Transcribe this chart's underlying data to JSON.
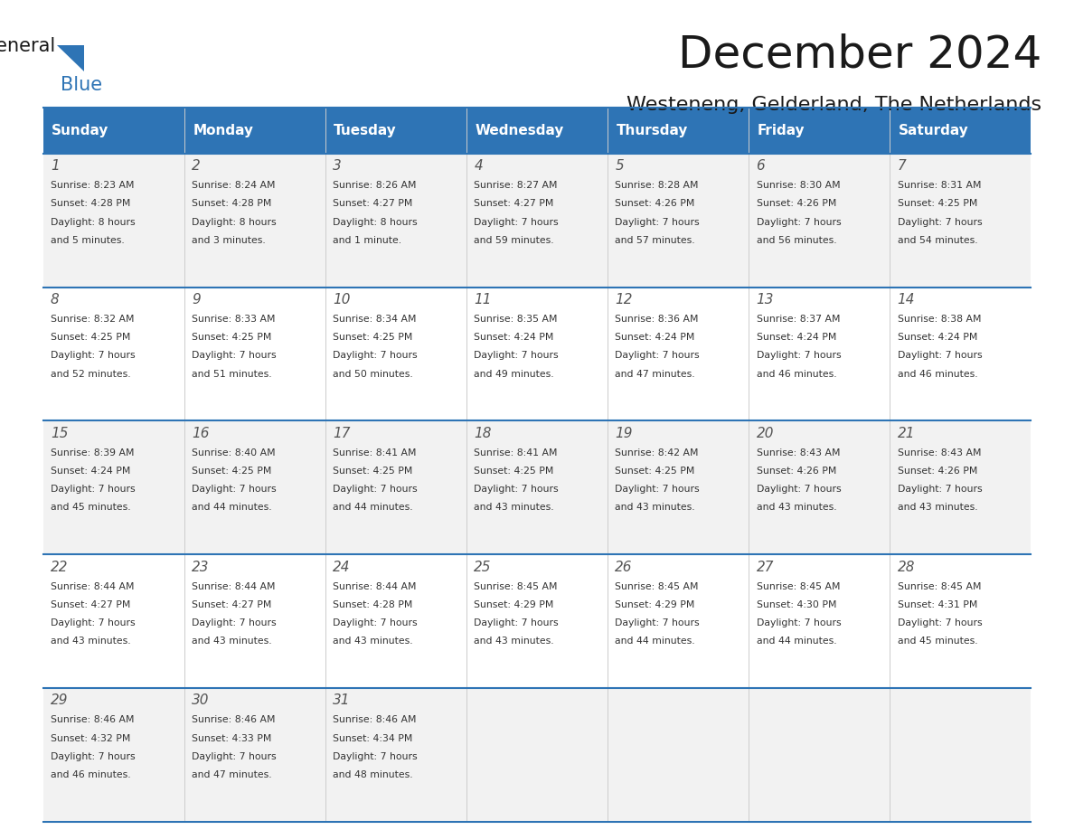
{
  "title": "December 2024",
  "subtitle": "Westeneng, Gelderland, The Netherlands",
  "header_bg": "#2E74B5",
  "header_text": "#FFFFFF",
  "row_bg_odd": "#F2F2F2",
  "row_bg_even": "#FFFFFF",
  "day_names": [
    "Sunday",
    "Monday",
    "Tuesday",
    "Wednesday",
    "Thursday",
    "Friday",
    "Saturday"
  ],
  "days": [
    {
      "day": 1,
      "col": 0,
      "row": 0,
      "sunrise": "8:23 AM",
      "sunset": "4:28 PM",
      "daylight": "8 hours and 5 minutes."
    },
    {
      "day": 2,
      "col": 1,
      "row": 0,
      "sunrise": "8:24 AM",
      "sunset": "4:28 PM",
      "daylight": "8 hours and 3 minutes."
    },
    {
      "day": 3,
      "col": 2,
      "row": 0,
      "sunrise": "8:26 AM",
      "sunset": "4:27 PM",
      "daylight": "8 hours and 1 minute."
    },
    {
      "day": 4,
      "col": 3,
      "row": 0,
      "sunrise": "8:27 AM",
      "sunset": "4:27 PM",
      "daylight": "7 hours and 59 minutes."
    },
    {
      "day": 5,
      "col": 4,
      "row": 0,
      "sunrise": "8:28 AM",
      "sunset": "4:26 PM",
      "daylight": "7 hours and 57 minutes."
    },
    {
      "day": 6,
      "col": 5,
      "row": 0,
      "sunrise": "8:30 AM",
      "sunset": "4:26 PM",
      "daylight": "7 hours and 56 minutes."
    },
    {
      "day": 7,
      "col": 6,
      "row": 0,
      "sunrise": "8:31 AM",
      "sunset": "4:25 PM",
      "daylight": "7 hours and 54 minutes."
    },
    {
      "day": 8,
      "col": 0,
      "row": 1,
      "sunrise": "8:32 AM",
      "sunset": "4:25 PM",
      "daylight": "7 hours and 52 minutes."
    },
    {
      "day": 9,
      "col": 1,
      "row": 1,
      "sunrise": "8:33 AM",
      "sunset": "4:25 PM",
      "daylight": "7 hours and 51 minutes."
    },
    {
      "day": 10,
      "col": 2,
      "row": 1,
      "sunrise": "8:34 AM",
      "sunset": "4:25 PM",
      "daylight": "7 hours and 50 minutes."
    },
    {
      "day": 11,
      "col": 3,
      "row": 1,
      "sunrise": "8:35 AM",
      "sunset": "4:24 PM",
      "daylight": "7 hours and 49 minutes."
    },
    {
      "day": 12,
      "col": 4,
      "row": 1,
      "sunrise": "8:36 AM",
      "sunset": "4:24 PM",
      "daylight": "7 hours and 47 minutes."
    },
    {
      "day": 13,
      "col": 5,
      "row": 1,
      "sunrise": "8:37 AM",
      "sunset": "4:24 PM",
      "daylight": "7 hours and 46 minutes."
    },
    {
      "day": 14,
      "col": 6,
      "row": 1,
      "sunrise": "8:38 AM",
      "sunset": "4:24 PM",
      "daylight": "7 hours and 46 minutes."
    },
    {
      "day": 15,
      "col": 0,
      "row": 2,
      "sunrise": "8:39 AM",
      "sunset": "4:24 PM",
      "daylight": "7 hours and 45 minutes."
    },
    {
      "day": 16,
      "col": 1,
      "row": 2,
      "sunrise": "8:40 AM",
      "sunset": "4:25 PM",
      "daylight": "7 hours and 44 minutes."
    },
    {
      "day": 17,
      "col": 2,
      "row": 2,
      "sunrise": "8:41 AM",
      "sunset": "4:25 PM",
      "daylight": "7 hours and 44 minutes."
    },
    {
      "day": 18,
      "col": 3,
      "row": 2,
      "sunrise": "8:41 AM",
      "sunset": "4:25 PM",
      "daylight": "7 hours and 43 minutes."
    },
    {
      "day": 19,
      "col": 4,
      "row": 2,
      "sunrise": "8:42 AM",
      "sunset": "4:25 PM",
      "daylight": "7 hours and 43 minutes."
    },
    {
      "day": 20,
      "col": 5,
      "row": 2,
      "sunrise": "8:43 AM",
      "sunset": "4:26 PM",
      "daylight": "7 hours and 43 minutes."
    },
    {
      "day": 21,
      "col": 6,
      "row": 2,
      "sunrise": "8:43 AM",
      "sunset": "4:26 PM",
      "daylight": "7 hours and 43 minutes."
    },
    {
      "day": 22,
      "col": 0,
      "row": 3,
      "sunrise": "8:44 AM",
      "sunset": "4:27 PM",
      "daylight": "7 hours and 43 minutes."
    },
    {
      "day": 23,
      "col": 1,
      "row": 3,
      "sunrise": "8:44 AM",
      "sunset": "4:27 PM",
      "daylight": "7 hours and 43 minutes."
    },
    {
      "day": 24,
      "col": 2,
      "row": 3,
      "sunrise": "8:44 AM",
      "sunset": "4:28 PM",
      "daylight": "7 hours and 43 minutes."
    },
    {
      "day": 25,
      "col": 3,
      "row": 3,
      "sunrise": "8:45 AM",
      "sunset": "4:29 PM",
      "daylight": "7 hours and 43 minutes."
    },
    {
      "day": 26,
      "col": 4,
      "row": 3,
      "sunrise": "8:45 AM",
      "sunset": "4:29 PM",
      "daylight": "7 hours and 44 minutes."
    },
    {
      "day": 27,
      "col": 5,
      "row": 3,
      "sunrise": "8:45 AM",
      "sunset": "4:30 PM",
      "daylight": "7 hours and 44 minutes."
    },
    {
      "day": 28,
      "col": 6,
      "row": 3,
      "sunrise": "8:45 AM",
      "sunset": "4:31 PM",
      "daylight": "7 hours and 45 minutes."
    },
    {
      "day": 29,
      "col": 0,
      "row": 4,
      "sunrise": "8:46 AM",
      "sunset": "4:32 PM",
      "daylight": "7 hours and 46 minutes."
    },
    {
      "day": 30,
      "col": 1,
      "row": 4,
      "sunrise": "8:46 AM",
      "sunset": "4:33 PM",
      "daylight": "7 hours and 47 minutes."
    },
    {
      "day": 31,
      "col": 2,
      "row": 4,
      "sunrise": "8:46 AM",
      "sunset": "4:34 PM",
      "daylight": "7 hours and 48 minutes."
    }
  ],
  "logo_general_color": "#1a1a1a",
  "logo_blue_color": "#2E74B5",
  "grid_line_color": "#2E74B5",
  "cell_text_color": "#333333",
  "cell_day_number_color": "#555555"
}
